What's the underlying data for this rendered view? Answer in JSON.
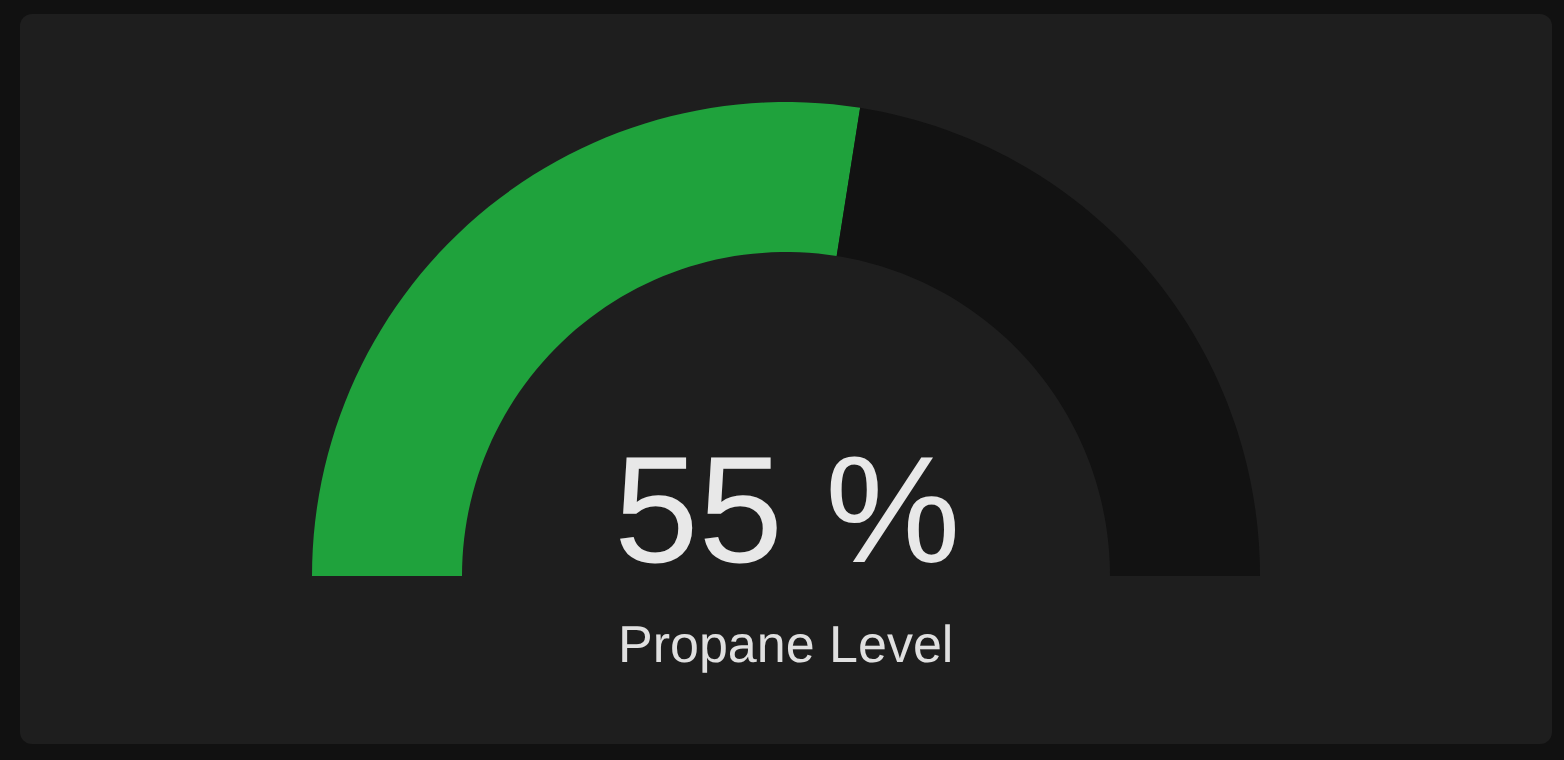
{
  "chart_data": {
    "type": "donut",
    "title": "Propane Level",
    "categories": [
      null,
      null
    ],
    "values": [
      55,
      45
    ],
    "colors": [
      "#1fa23c",
      "#121212"
    ],
    "value_labels": [
      "55 %",
      null
    ]
  }
}
